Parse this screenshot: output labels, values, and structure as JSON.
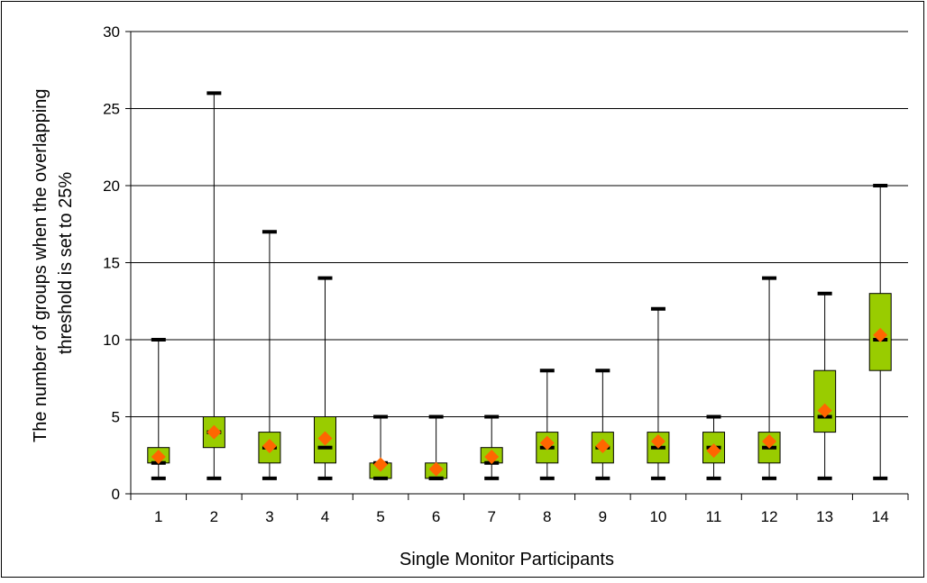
{
  "chart_data": {
    "type": "box",
    "title": "",
    "xlabel": "Single Monitor Participants",
    "ylabel_lines": [
      "The number of groups when the overlapping",
      "threshold is set to 25%"
    ],
    "ylim": [
      0,
      30
    ],
    "yticks": [
      0,
      5,
      10,
      15,
      20,
      25,
      30
    ],
    "grid": true,
    "categories": [
      "1",
      "2",
      "3",
      "4",
      "5",
      "6",
      "7",
      "8",
      "9",
      "10",
      "11",
      "12",
      "13",
      "14"
    ],
    "boxes": [
      {
        "min": 1,
        "q1": 2,
        "median": 2,
        "q3": 3,
        "max": 10,
        "mean": 2.4
      },
      {
        "min": 1,
        "q1": 3,
        "median": 4,
        "q3": 5,
        "max": 26,
        "mean": 4.0
      },
      {
        "min": 1,
        "q1": 2,
        "median": 3,
        "q3": 4,
        "max": 17,
        "mean": 3.1
      },
      {
        "min": 1,
        "q1": 2,
        "median": 3,
        "q3": 5,
        "max": 14,
        "mean": 3.6
      },
      {
        "min": 1,
        "q1": 1,
        "median": 2,
        "q3": 2,
        "max": 5,
        "mean": 1.9
      },
      {
        "min": 1,
        "q1": 1,
        "median": 1,
        "q3": 2,
        "max": 5,
        "mean": 1.6
      },
      {
        "min": 1,
        "q1": 2,
        "median": 2,
        "q3": 3,
        "max": 5,
        "mean": 2.4
      },
      {
        "min": 1,
        "q1": 2,
        "median": 3,
        "q3": 4,
        "max": 8,
        "mean": 3.3
      },
      {
        "min": 1,
        "q1": 2,
        "median": 3,
        "q3": 4,
        "max": 8,
        "mean": 3.1
      },
      {
        "min": 1,
        "q1": 2,
        "median": 3,
        "q3": 4,
        "max": 12,
        "mean": 3.4
      },
      {
        "min": 1,
        "q1": 2,
        "median": 3,
        "q3": 4,
        "max": 5,
        "mean": 2.8
      },
      {
        "min": 1,
        "q1": 2,
        "median": 3,
        "q3": 4,
        "max": 14,
        "mean": 3.4
      },
      {
        "min": 1,
        "q1": 4,
        "median": 5,
        "q3": 8,
        "max": 13,
        "mean": 5.4
      },
      {
        "min": 1,
        "q1": 8,
        "median": 10,
        "q3": 13,
        "max": 20,
        "mean": 10.3
      }
    ],
    "colors": {
      "box_fill": "#99cc00",
      "mean_marker": "#ff6600",
      "whisker": "#000000",
      "grid": "#000000"
    }
  }
}
